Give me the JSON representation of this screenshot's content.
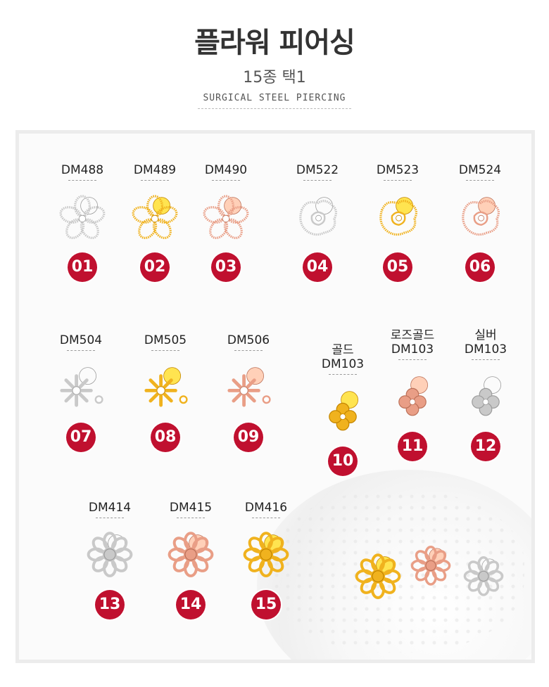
{
  "header": {
    "title": "플라워 피어싱",
    "subtitle": "15종 택1",
    "english": "SURGICAL STEEL PIERCING"
  },
  "colors": {
    "silver": "#c9c9c9",
    "gold": "#f0b21e",
    "rose": "#e99e86",
    "badge": "#c0102f"
  },
  "products": [
    {
      "code": "DM488",
      "num": "01",
      "metal": "silver",
      "shape": "flower-outline"
    },
    {
      "code": "DM489",
      "num": "02",
      "metal": "gold",
      "shape": "flower-outline"
    },
    {
      "code": "DM490",
      "num": "03",
      "metal": "rose",
      "shape": "flower-outline"
    },
    {
      "code": "DM522",
      "num": "04",
      "metal": "silver",
      "shape": "rose-outline"
    },
    {
      "code": "DM523",
      "num": "05",
      "metal": "gold",
      "shape": "rose-outline"
    },
    {
      "code": "DM524",
      "num": "06",
      "metal": "rose",
      "shape": "rose-outline"
    },
    {
      "code": "DM504",
      "num": "07",
      "metal": "silver",
      "shape": "snowflake"
    },
    {
      "code": "DM505",
      "num": "08",
      "metal": "gold",
      "shape": "snowflake"
    },
    {
      "code": "DM506",
      "num": "09",
      "metal": "rose",
      "shape": "snowflake"
    },
    {
      "label": "골드",
      "code": "DM103",
      "num": "10",
      "metal": "gold",
      "shape": "clover"
    },
    {
      "label": "로즈골드",
      "code": "DM103",
      "num": "11",
      "metal": "rose",
      "shape": "clover"
    },
    {
      "label": "실버",
      "code": "DM103",
      "num": "12",
      "metal": "silver",
      "shape": "clover"
    },
    {
      "code": "DM414",
      "num": "13",
      "metal": "silver",
      "shape": "daisy"
    },
    {
      "code": "DM415",
      "num": "14",
      "metal": "rose",
      "shape": "daisy"
    },
    {
      "code": "DM416",
      "num": "15",
      "metal": "gold",
      "shape": "daisy"
    }
  ]
}
